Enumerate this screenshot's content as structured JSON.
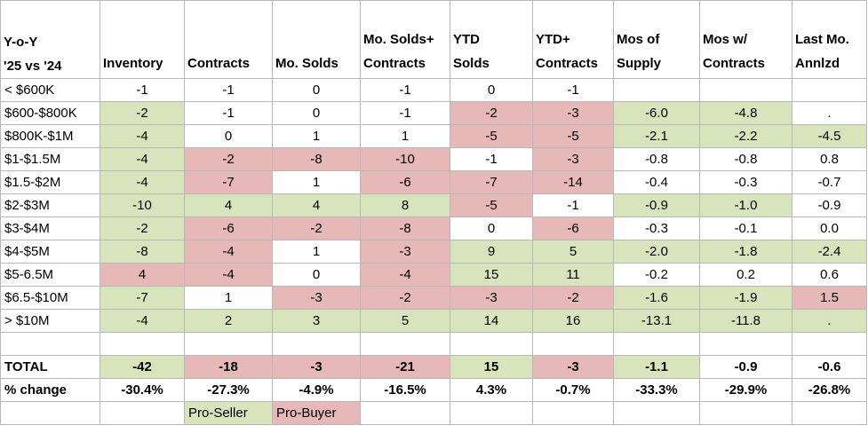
{
  "header": {
    "row_label": [
      "Y-o-Y",
      "'25 vs '24"
    ],
    "columns": [
      [
        "Inventory"
      ],
      [
        "Contracts"
      ],
      [
        "Mo. Solds"
      ],
      [
        "Mo. Solds+",
        "Contracts"
      ],
      [
        "YTD",
        "Solds"
      ],
      [
        "YTD+",
        "Contracts"
      ],
      [
        "Mos of",
        "Supply"
      ],
      [
        "Mos w/",
        "Contracts"
      ],
      [
        "Last Mo.",
        "Annlzd"
      ]
    ]
  },
  "colors": {
    "pro_seller": "#d8e4bc",
    "pro_buyer": "#e6b8b7"
  },
  "rows": [
    {
      "label": "< $600K",
      "cells": [
        [
          "-1",
          ""
        ],
        [
          "-1",
          ""
        ],
        [
          "0",
          ""
        ],
        [
          "-1",
          ""
        ],
        [
          "0",
          ""
        ],
        [
          "-1",
          ""
        ],
        [
          "",
          ""
        ],
        [
          "",
          ""
        ],
        [
          "",
          ""
        ]
      ]
    },
    {
      "label": "$600-$800K",
      "cells": [
        [
          "-2",
          "g"
        ],
        [
          "-1",
          ""
        ],
        [
          "0",
          ""
        ],
        [
          "-1",
          ""
        ],
        [
          "-2",
          "r"
        ],
        [
          "-3",
          "r"
        ],
        [
          "-6.0",
          "g"
        ],
        [
          "-4.8",
          "g"
        ],
        [
          ".",
          ""
        ]
      ]
    },
    {
      "label": "$800K-$1M",
      "cells": [
        [
          "-4",
          "g"
        ],
        [
          "0",
          ""
        ],
        [
          "1",
          ""
        ],
        [
          "1",
          ""
        ],
        [
          "-5",
          "r"
        ],
        [
          "-5",
          "r"
        ],
        [
          "-2.1",
          "g"
        ],
        [
          "-2.2",
          "g"
        ],
        [
          "-4.5",
          "g"
        ]
      ]
    },
    {
      "label": "$1-$1.5M",
      "cells": [
        [
          "-4",
          "g"
        ],
        [
          "-2",
          "r"
        ],
        [
          "-8",
          "r"
        ],
        [
          "-10",
          "r"
        ],
        [
          "-1",
          ""
        ],
        [
          "-3",
          "r"
        ],
        [
          "-0.8",
          ""
        ],
        [
          "-0.8",
          ""
        ],
        [
          "0.8",
          ""
        ]
      ]
    },
    {
      "label": "$1.5-$2M",
      "cells": [
        [
          "-4",
          "g"
        ],
        [
          "-7",
          "r"
        ],
        [
          "1",
          ""
        ],
        [
          "-6",
          "r"
        ],
        [
          "-7",
          "r"
        ],
        [
          "-14",
          "r"
        ],
        [
          "-0.4",
          ""
        ],
        [
          "-0.3",
          ""
        ],
        [
          "-0.7",
          ""
        ]
      ]
    },
    {
      "label": "$2-$3M",
      "cells": [
        [
          "-10",
          "g"
        ],
        [
          "4",
          "g"
        ],
        [
          "4",
          "g"
        ],
        [
          "8",
          "g"
        ],
        [
          "-5",
          "r"
        ],
        [
          "-1",
          ""
        ],
        [
          "-0.9",
          "g"
        ],
        [
          "-1.0",
          "g"
        ],
        [
          "-0.9",
          ""
        ]
      ]
    },
    {
      "label": "$3-$4M",
      "cells": [
        [
          "-2",
          "g"
        ],
        [
          "-6",
          "r"
        ],
        [
          "-2",
          "r"
        ],
        [
          "-8",
          "r"
        ],
        [
          "0",
          ""
        ],
        [
          "-6",
          "r"
        ],
        [
          "-0.3",
          ""
        ],
        [
          "-0.1",
          ""
        ],
        [
          "0.0",
          ""
        ]
      ]
    },
    {
      "label": "$4-$5M",
      "cells": [
        [
          "-8",
          "g"
        ],
        [
          "-4",
          "r"
        ],
        [
          "1",
          ""
        ],
        [
          "-3",
          "r"
        ],
        [
          "9",
          "g"
        ],
        [
          "5",
          "g"
        ],
        [
          "-2.0",
          "g"
        ],
        [
          "-1.8",
          "g"
        ],
        [
          "-2.4",
          "g"
        ]
      ]
    },
    {
      "label": "$5-6.5M",
      "cells": [
        [
          "4",
          "r"
        ],
        [
          "-4",
          "r"
        ],
        [
          "0",
          ""
        ],
        [
          "-4",
          "r"
        ],
        [
          "15",
          "g"
        ],
        [
          "11",
          "g"
        ],
        [
          "-0.2",
          ""
        ],
        [
          "0.2",
          ""
        ],
        [
          "0.6",
          ""
        ]
      ]
    },
    {
      "label": "$6.5-$10M",
      "cells": [
        [
          "-7",
          "g"
        ],
        [
          "1",
          ""
        ],
        [
          "-3",
          "r"
        ],
        [
          "-2",
          "r"
        ],
        [
          "-3",
          "r"
        ],
        [
          "-2",
          "r"
        ],
        [
          "-1.6",
          "g"
        ],
        [
          "-1.9",
          "g"
        ],
        [
          "1.5",
          "r"
        ]
      ]
    },
    {
      "label": "> $10M",
      "cells": [
        [
          "-4",
          "g"
        ],
        [
          "2",
          "g"
        ],
        [
          "3",
          "g"
        ],
        [
          "5",
          "g"
        ],
        [
          "14",
          "g"
        ],
        [
          "16",
          "g"
        ],
        [
          "-13.1",
          "g"
        ],
        [
          "-11.8",
          "g"
        ],
        [
          ".",
          "g"
        ]
      ]
    }
  ],
  "total": {
    "label": "TOTAL",
    "cells": [
      [
        "-42",
        "g"
      ],
      [
        "-18",
        "r"
      ],
      [
        "-3",
        "r"
      ],
      [
        "-21",
        "r"
      ],
      [
        "15",
        "g"
      ],
      [
        "-3",
        "r"
      ],
      [
        "-1.1",
        "g"
      ],
      [
        "-0.9",
        ""
      ],
      [
        "-0.6",
        ""
      ]
    ]
  },
  "pct_change": {
    "label": "% change",
    "cells": [
      "-30.4%",
      "-27.3%",
      "-4.9%",
      "-16.5%",
      "4.3%",
      "-0.7%",
      "-33.3%",
      "-29.9%",
      "-26.8%"
    ]
  },
  "legend": {
    "pro_seller": "Pro-Seller",
    "pro_buyer": "Pro-Buyer"
  }
}
